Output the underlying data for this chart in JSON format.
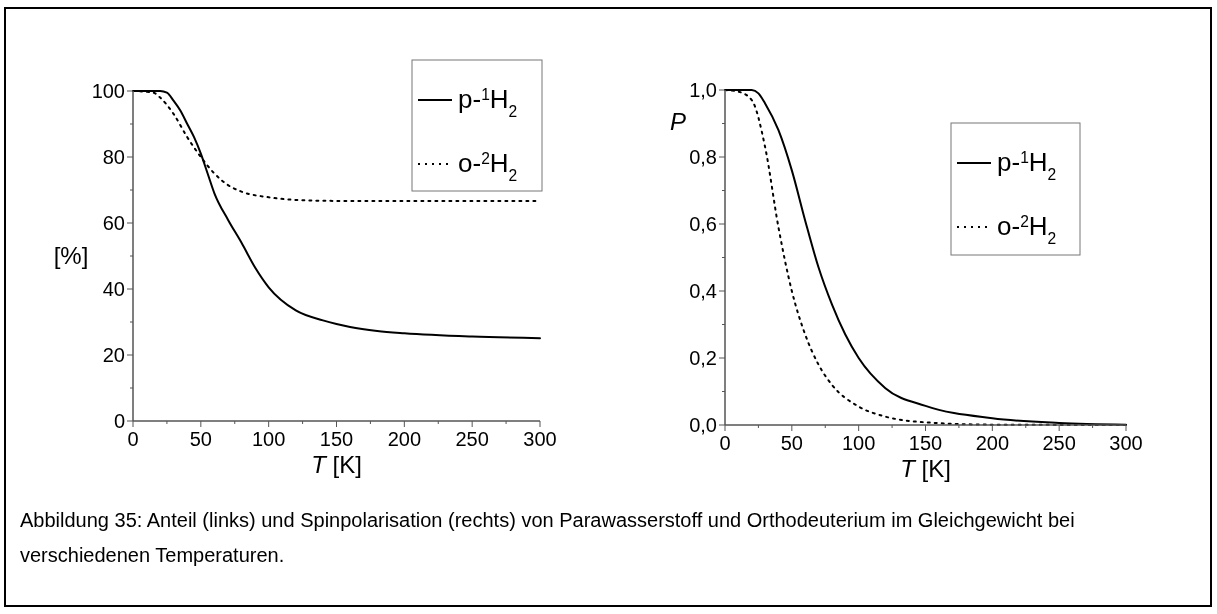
{
  "chart_data": [
    {
      "type": "line",
      "xlabel": "T [K]",
      "ylabel": "[%]",
      "xlim": [
        0,
        300
      ],
      "ylim": [
        0,
        100
      ],
      "xticks": [
        0,
        {
          "value": 25,
          "label": null
        },
        50,
        {
          "value": 75,
          "label": null
        },
        100,
        {
          "value": 125,
          "label": null
        },
        150,
        {
          "value": 175,
          "label": null
        },
        200,
        {
          "value": 225,
          "label": null
        },
        250,
        {
          "value": 275,
          "label": null
        },
        300
      ],
      "yticks": [
        0,
        {
          "value": 10,
          "label": null
        },
        20,
        {
          "value": 30,
          "label": null
        },
        40,
        {
          "value": 50,
          "label": null
        },
        60,
        {
          "value": 70,
          "label": null
        },
        80,
        {
          "value": 90,
          "label": null
        },
        100
      ],
      "legend": "top right",
      "grid": false,
      "series": [
        {
          "name": "p-$^{1}$H$_{2}$",
          "color": "#000000",
          "line_style": "solid",
          "x": [
            0,
            20,
            25,
            30,
            35,
            40,
            45,
            50,
            55,
            60,
            70,
            80,
            90,
            100,
            120,
            140,
            150,
            160,
            180,
            200,
            250,
            300
          ],
          "values": [
            100,
            100,
            99.5,
            97,
            94,
            90,
            86,
            81,
            75,
            69,
            61,
            54,
            46.5,
            40.5,
            33.5,
            30.5,
            29.4,
            28.5,
            27.3,
            26.6,
            25.6,
            25.1
          ]
        },
        {
          "name": "o-$^{2}$H$_{2}$",
          "color": "#000000",
          "line_style": "dotted",
          "x": [
            0,
            15,
            20,
            30,
            40,
            50,
            60,
            70,
            80,
            100,
            120,
            150,
            200,
            300
          ],
          "values": [
            100,
            99.5,
            98,
            93,
            86,
            80,
            75,
            71.5,
            69.5,
            67.8,
            67,
            66.7,
            66.7,
            66.7
          ]
        }
      ]
    },
    {
      "type": "line",
      "xlabel": "T [K]",
      "ylabel": "P",
      "xlim": [
        0,
        300
      ],
      "ylim": [
        0,
        1
      ],
      "xticks": [
        0,
        {
          "value": 25,
          "label": null
        },
        50,
        {
          "value": 75,
          "label": null
        },
        100,
        {
          "value": 125,
          "label": null
        },
        150,
        {
          "value": 175,
          "label": null
        },
        200,
        {
          "value": 225,
          "label": null
        },
        250,
        {
          "value": 275,
          "label": null
        },
        300
      ],
      "yticks": [
        {
          "value": 0,
          "label": "0,0"
        },
        {
          "value": 0.1,
          "label": null
        },
        {
          "value": 0.2,
          "label": "0,2"
        },
        {
          "value": 0.3,
          "label": null
        },
        {
          "value": 0.4,
          "label": "0,4"
        },
        {
          "value": 0.5,
          "label": null
        },
        {
          "value": 0.6,
          "label": "0,6"
        },
        {
          "value": 0.7,
          "label": null
        },
        {
          "value": 0.8,
          "label": "0,8"
        },
        {
          "value": 0.9,
          "label": null
        },
        {
          "value": 1,
          "label": "1,0"
        }
      ],
      "legend": "top right",
      "grid": false,
      "annotations": [
        "Abbildung 35: Anteil (links) und Spinpolarisation (rechts) von Parawasserstoff und Orthodeuterium im Gleichgewicht bei verschiedenen Temperaturen."
      ],
      "series": [
        {
          "name": "p-$^{1}$H$_{2}$",
          "color": "#000000",
          "line_style": "solid",
          "x": [
            0,
            20,
            25,
            30,
            40,
            50,
            60,
            70,
            80,
            90,
            100,
            120,
            150,
            200,
            250,
            300
          ],
          "values": [
            1,
            1,
            0.99,
            0.96,
            0.88,
            0.76,
            0.61,
            0.47,
            0.36,
            0.27,
            0.2,
            0.11,
            0.057,
            0.02,
            0.006,
            0.001
          ]
        },
        {
          "name": "o-$^{2}$H$_{2}$",
          "color": "#000000",
          "line_style": "dotted",
          "x": [
            0,
            10,
            20,
            30,
            40,
            50,
            60,
            70,
            80,
            100,
            120,
            150,
            200,
            300
          ],
          "values": [
            1,
            0.995,
            0.97,
            0.83,
            0.59,
            0.4,
            0.27,
            0.18,
            0.12,
            0.055,
            0.025,
            0.008,
            0.001,
            0
          ]
        }
      ]
    }
  ]
}
